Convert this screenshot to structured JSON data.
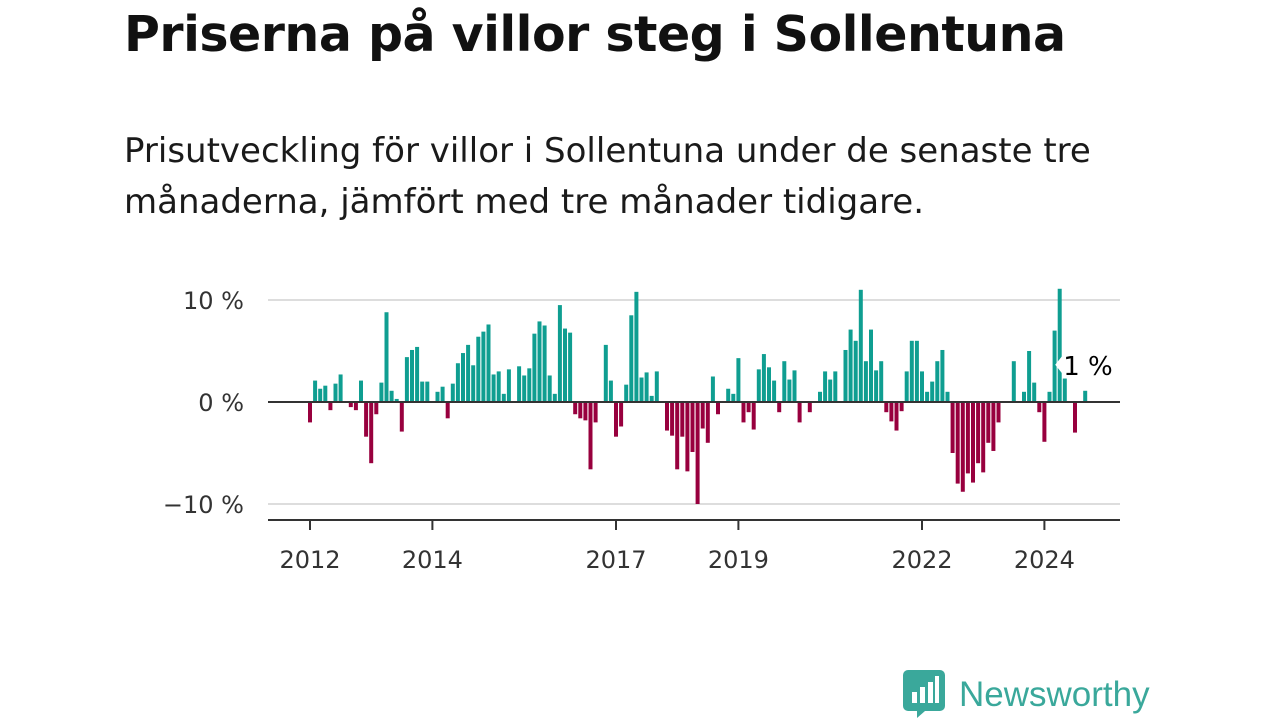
{
  "header": {
    "title": "Priserna på villor steg i Sollentuna",
    "subtitle": "Prisutveckling för villor i Sollentuna under de senaste tre månaderna, jämfört med tre månader tidigare."
  },
  "colors": {
    "positive": "#0f9e91",
    "negative": "#98003e",
    "baseline": "#333333",
    "grid": "#dddddd",
    "axis_text": "#333333"
  },
  "chart_data": {
    "type": "bar",
    "title": "Priserna på villor steg i Sollentuna",
    "subtitle": "Prisutveckling för villor i Sollentuna under de senaste tre månaderna, jämfört med tre månader tidigare.",
    "xlabel": "",
    "ylabel": "",
    "x_start": 2012,
    "x_step_months": 1,
    "ylim": [
      -11.5,
      11
    ],
    "y_ticks": [
      {
        "value": 10,
        "label": "10 %"
      },
      {
        "value": 0,
        "label": "0 %"
      },
      {
        "value": -10,
        "label": "−10 %"
      }
    ],
    "x_ticks": [
      {
        "value": 2012,
        "label": "2012"
      },
      {
        "value": 2014,
        "label": "2014"
      },
      {
        "value": 2017,
        "label": "2017"
      },
      {
        "value": 2019,
        "label": "2019"
      },
      {
        "value": 2022,
        "label": "2022"
      },
      {
        "value": 2024,
        "label": "2024"
      }
    ],
    "annotation": {
      "label": "1 %",
      "value": 1.1
    },
    "values": [
      -2,
      2.1,
      1.3,
      1.6,
      -0.8,
      1.8,
      2.7,
      0,
      -0.5,
      -0.8,
      2.1,
      -3.4,
      -6,
      -1.2,
      1.9,
      8.8,
      1.1,
      0.3,
      -2.9,
      4.4,
      5.1,
      5.4,
      2,
      2,
      0,
      1,
      1.5,
      -1.6,
      1.8,
      3.8,
      4.8,
      5.6,
      3.6,
      6.4,
      6.9,
      7.6,
      2.7,
      3,
      0.8,
      3.2,
      0,
      3.5,
      2.6,
      3.3,
      6.7,
      7.9,
      7.5,
      2.6,
      0.8,
      9.5,
      7.2,
      6.8,
      -1.2,
      -1.6,
      -1.8,
      -6.6,
      -2,
      0,
      5.6,
      2.1,
      -3.4,
      -2.4,
      1.7,
      8.5,
      10.8,
      2.4,
      2.9,
      0.6,
      3,
      0,
      -2.8,
      -3.3,
      -6.6,
      -3.4,
      -6.8,
      -4.9,
      -10,
      -2.6,
      -4,
      2.5,
      -1.2,
      0,
      1.3,
      0.8,
      4.3,
      -2,
      -1,
      -2.7,
      3.2,
      4.7,
      3.4,
      2.1,
      -1,
      4,
      2.2,
      3.1,
      -2,
      0,
      -1,
      0,
      1,
      3,
      2.2,
      3,
      0,
      5.1,
      7.1,
      6,
      11,
      4,
      7.1,
      3.1,
      4,
      -1,
      -1.9,
      -2.8,
      -0.9,
      3,
      6,
      6,
      3,
      1,
      2,
      4,
      5.1,
      1,
      -5,
      -8,
      -8.8,
      -7,
      -7.9,
      -6,
      -6.9,
      -4,
      -4.8,
      -2,
      0,
      0,
      4,
      0,
      1,
      5,
      1.9,
      -1,
      -3.9,
      1,
      7,
      11.1,
      2.3,
      0,
      -3,
      0,
      1.1
    ]
  },
  "branding": {
    "name": "Newsworthy"
  }
}
